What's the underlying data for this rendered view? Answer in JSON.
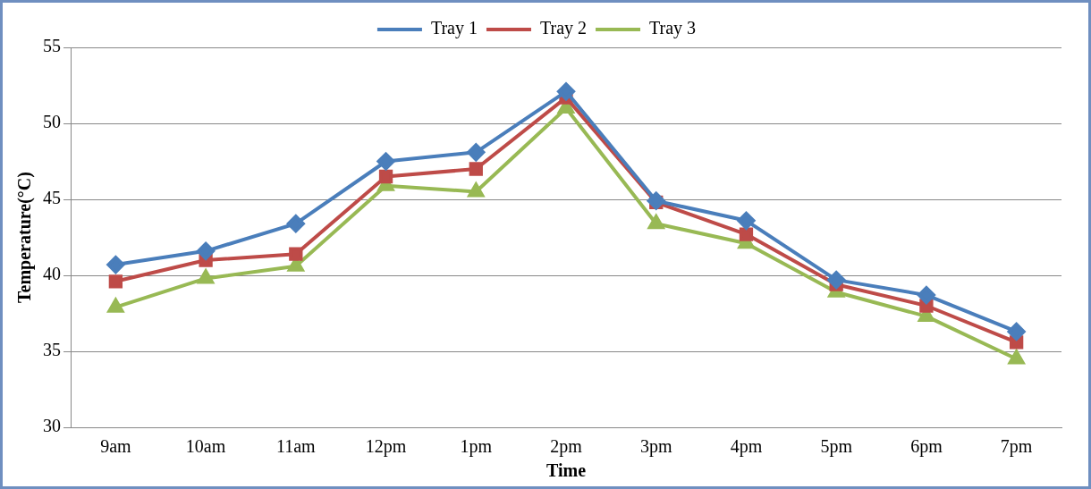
{
  "chart_data": {
    "type": "line",
    "xlabel": "Time",
    "ylabel": "Temperature(°C)",
    "categories": [
      "9am",
      "10am",
      "11am",
      "12pm",
      "1pm",
      "2pm",
      "3pm",
      "4pm",
      "5pm",
      "6pm",
      "7pm"
    ],
    "series": [
      {
        "name": "Tray 1",
        "color": "#4a7ebb",
        "marker": "diamond",
        "values": [
          40.7,
          41.6,
          43.4,
          47.5,
          48.1,
          52.1,
          44.9,
          43.6,
          39.7,
          38.7,
          36.3
        ]
      },
      {
        "name": "Tray 2",
        "color": "#be4b48",
        "marker": "square",
        "values": [
          39.6,
          41.0,
          41.4,
          46.5,
          47.0,
          51.7,
          44.8,
          42.7,
          39.4,
          38.0,
          35.6
        ]
      },
      {
        "name": "Tray 3",
        "color": "#98b954",
        "marker": "triangle",
        "values": [
          37.9,
          39.8,
          40.6,
          45.9,
          45.5,
          51.0,
          43.4,
          42.1,
          38.9,
          37.3,
          34.5
        ]
      }
    ],
    "ylim": [
      30,
      55
    ],
    "yticks": [
      30,
      35,
      40,
      45,
      50,
      55
    ],
    "grid": "y",
    "legend": "top",
    "line_style": "solid"
  }
}
